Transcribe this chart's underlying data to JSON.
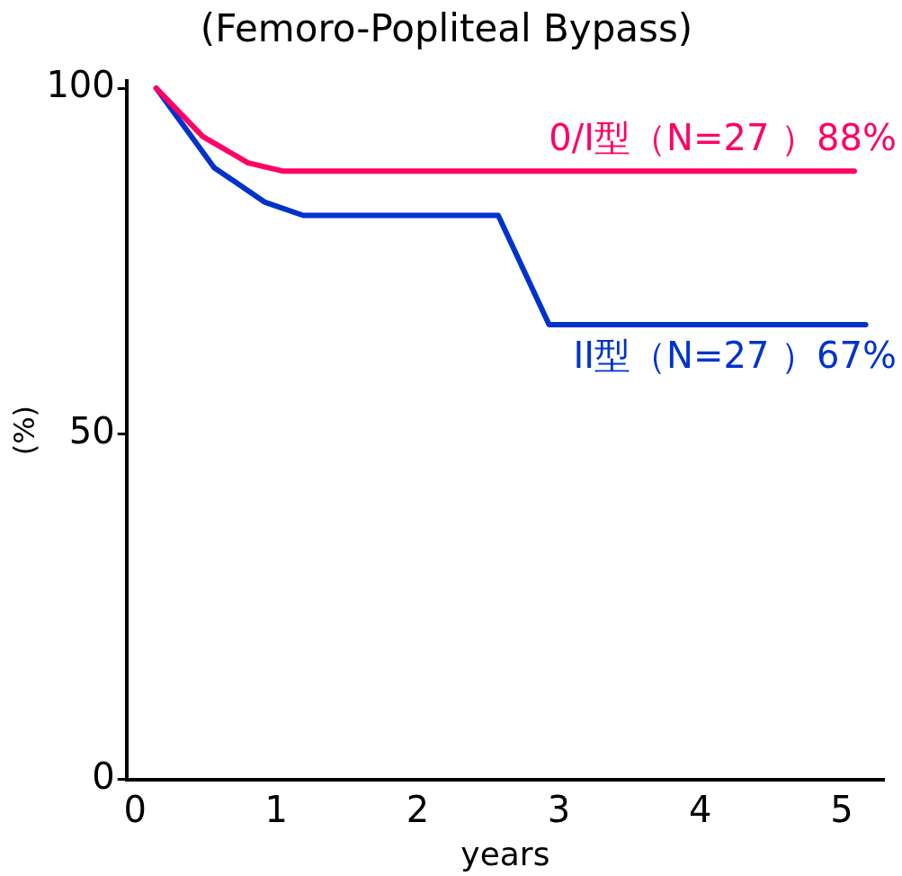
{
  "chart_data": {
    "type": "line",
    "title": "(Femoro-Popliteal Bypass)",
    "xlabel": "years",
    "ylabel": "(%)",
    "xlim": [
      -0.06,
      5.3
    ],
    "xticks": [
      0,
      1,
      2,
      3,
      4,
      5
    ],
    "ylim": [
      0,
      101
    ],
    "yticks": [
      0,
      50,
      100
    ],
    "grid": false,
    "legend": false,
    "marker": "none",
    "line_style": "solid",
    "series": [
      {
        "name": "0/I型（N=27 ）88%",
        "color": "#ff0066",
        "x": [
          0.15,
          0.48,
          0.8,
          1.05,
          5.09
        ],
        "values": [
          100,
          93,
          89.2,
          88,
          88
        ]
      },
      {
        "name": "II型（N=27 ）67%",
        "color": "#0033cc",
        "x": [
          0.15,
          0.56,
          0.92,
          1.19,
          2.57,
          2.93,
          5.17
        ],
        "values": [
          100,
          88.5,
          83.5,
          81.6,
          81.6,
          65.8,
          65.8
        ]
      }
    ]
  }
}
